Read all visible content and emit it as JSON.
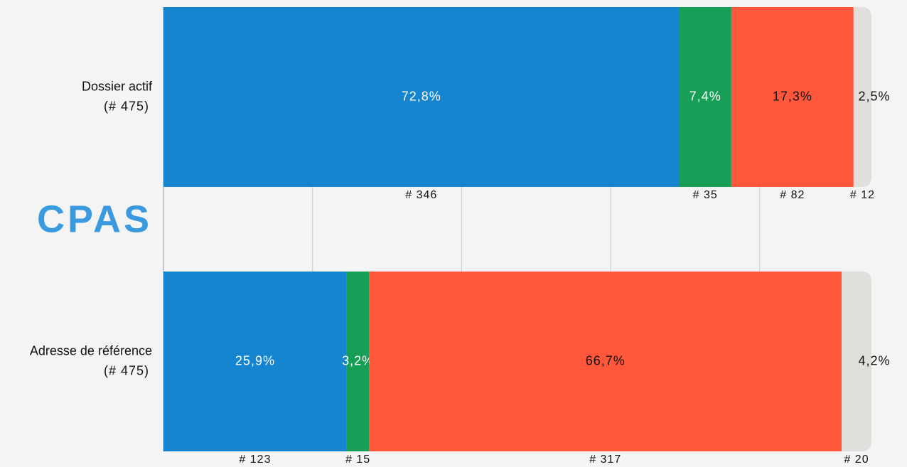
{
  "chart_data": {
    "type": "stacked-barh",
    "title": "CPAS",
    "categories": [
      "Dossier actif",
      "Adresse de référence"
    ],
    "category_counts": [
      "(# 475)",
      "(# 475)"
    ],
    "xlim": [
      0,
      475
    ],
    "xticks": [
      0,
      100,
      200,
      300,
      400
    ],
    "grid": true,
    "series": [
      {
        "color": "#1585d0",
        "label_color": "#ffffff",
        "values": [
          346,
          123
        ],
        "value_labels": [
          "72,8%",
          "25,9%"
        ],
        "count_labels": [
          "# 346",
          "# 123"
        ]
      },
      {
        "color": "#189f57",
        "label_color": "#ffffff",
        "values": [
          35,
          15
        ],
        "value_labels": [
          "7,4%",
          "3,2%"
        ],
        "count_labels": [
          "# 35",
          "# 15"
        ]
      },
      {
        "color": "#ff573b",
        "label_color": "#111111",
        "values": [
          82,
          317
        ],
        "value_labels": [
          "17,3%",
          "66,7%"
        ],
        "count_labels": [
          "# 82",
          "# 317"
        ]
      },
      {
        "color": "#e0dfdc",
        "label_color": "#111111",
        "values": [
          12,
          20
        ],
        "value_labels": [
          "2,5%",
          "4,2%"
        ],
        "count_labels": [
          "# 12",
          "# 20"
        ]
      }
    ]
  }
}
